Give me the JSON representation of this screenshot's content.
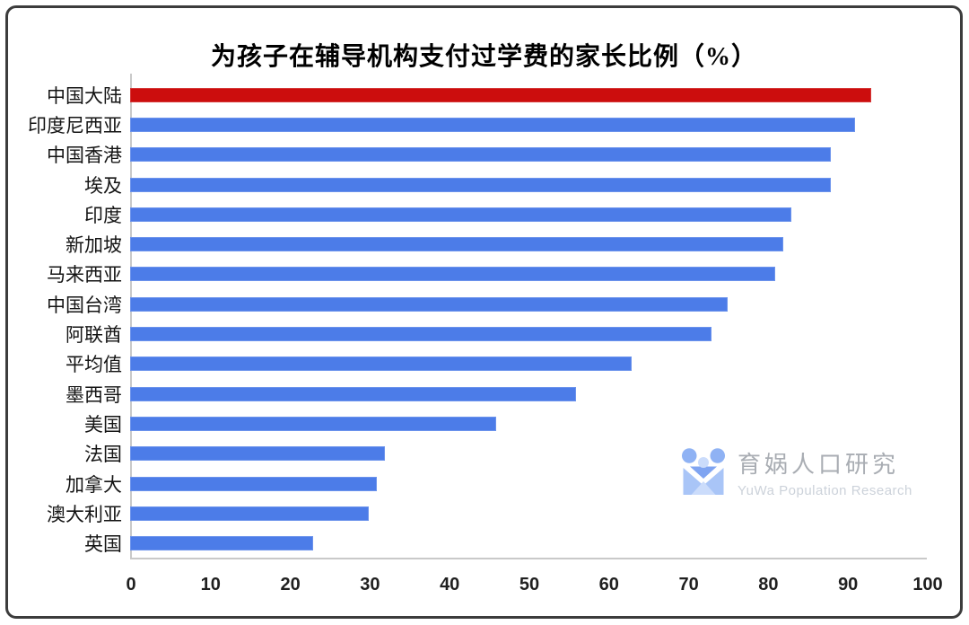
{
  "chart_data": {
    "type": "bar",
    "orientation": "horizontal",
    "title": "为孩子在辅导机构支付过学费的家长比例（%）",
    "categories": [
      "中国大陆",
      "印度尼西亚",
      "中国香港",
      "埃及",
      "印度",
      "新加坡",
      "马来西亚",
      "中国台湾",
      "阿联酋",
      "平均值",
      "墨西哥",
      "美国",
      "法国",
      "加拿大",
      "澳大利亚",
      "英国"
    ],
    "values": [
      93,
      91,
      88,
      88,
      83,
      82,
      81,
      75,
      73,
      63,
      56,
      46,
      32,
      31,
      30,
      23
    ],
    "highlight_category": "中国大陆",
    "highlight_color": "#CC0D0D",
    "bar_color": "#4C7CE8",
    "xlabel": "",
    "ylabel": "",
    "xlim": [
      0,
      100
    ],
    "x_ticks": [
      0,
      10,
      20,
      30,
      40,
      50,
      60,
      70,
      80,
      90,
      100
    ],
    "legend_position": "none",
    "grid": "off"
  },
  "watermark": {
    "logo_icon": "yuwa-family-logo",
    "name_cn": "育娲人口研究",
    "name_en": "YuWa Population Research"
  }
}
